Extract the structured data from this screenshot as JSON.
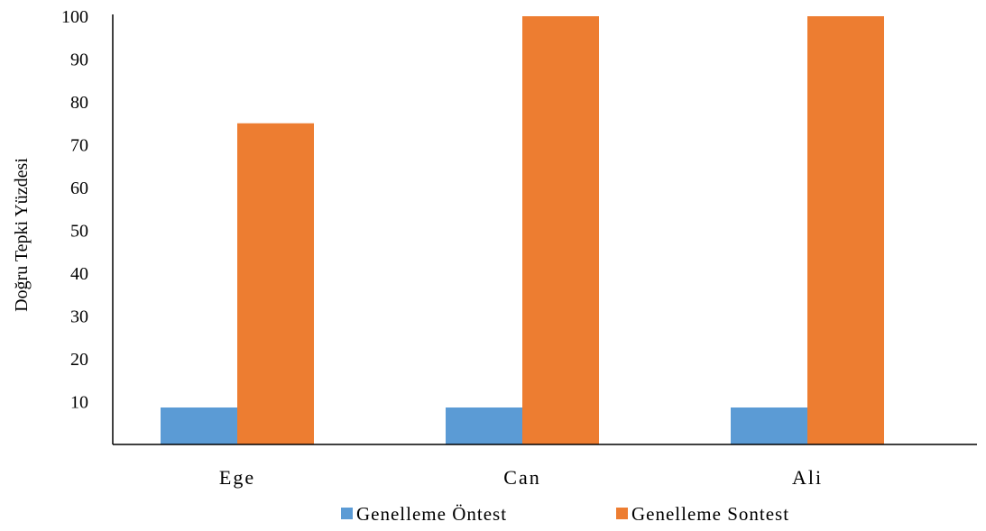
{
  "chart_data": {
    "type": "bar",
    "title": "",
    "xlabel": "",
    "ylabel": "Doğru Tepki Yüzdesi",
    "categories": [
      "Ege",
      "Can",
      "Ali"
    ],
    "series": [
      {
        "name": "Genelleme Öntest",
        "color": "#5b9bd5",
        "values": [
          0,
          0,
          0
        ]
      },
      {
        "name": "Genelleme Sontest",
        "color": "#ed7d31",
        "values": [
          75,
          100,
          100
        ]
      }
    ],
    "ylim": [
      0,
      100
    ],
    "yticks": [
      10,
      20,
      30,
      40,
      50,
      60,
      70,
      80,
      90,
      100
    ],
    "zero_bar_display_height": 10,
    "grid": false,
    "legend_position": "bottom"
  }
}
